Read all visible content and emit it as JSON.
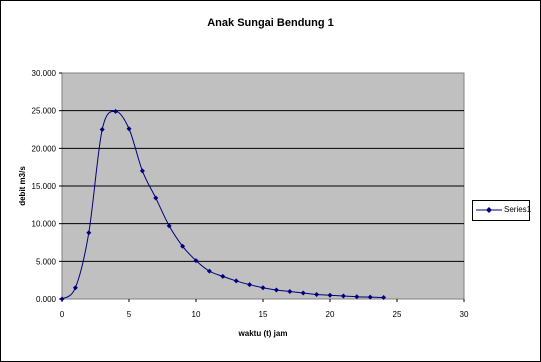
{
  "chart_data": {
    "type": "line",
    "title": "Anak Sungai Bendung 1",
    "xlabel": "waktu (t) jam",
    "ylabel": "debit m3/s",
    "xlim": [
      0,
      30
    ],
    "ylim": [
      0,
      30
    ],
    "x_ticks": [
      "0",
      "5",
      "10",
      "15",
      "20",
      "25",
      "30"
    ],
    "y_ticks": [
      "0.000",
      "5.000",
      "10.000",
      "15.000",
      "20.000",
      "25.000",
      "30.000"
    ],
    "grid": "horizontal",
    "legend_position": "right",
    "colors": {
      "series": "#00007f",
      "plot_bg": "#c0c0c0"
    },
    "series": [
      {
        "name": "Series1",
        "x": [
          0,
          1,
          2,
          3,
          4,
          5,
          6,
          7,
          8,
          9,
          10,
          11,
          12,
          13,
          14,
          15,
          16,
          17,
          18,
          19,
          20,
          21,
          22,
          23,
          24
        ],
        "y": [
          0.0,
          1.5,
          8.8,
          22.5,
          24.9,
          22.6,
          17.0,
          13.4,
          9.7,
          7.0,
          5.1,
          3.7,
          3.0,
          2.4,
          1.9,
          1.5,
          1.2,
          1.0,
          0.8,
          0.6,
          0.5,
          0.4,
          0.3,
          0.25,
          0.2
        ]
      }
    ]
  }
}
